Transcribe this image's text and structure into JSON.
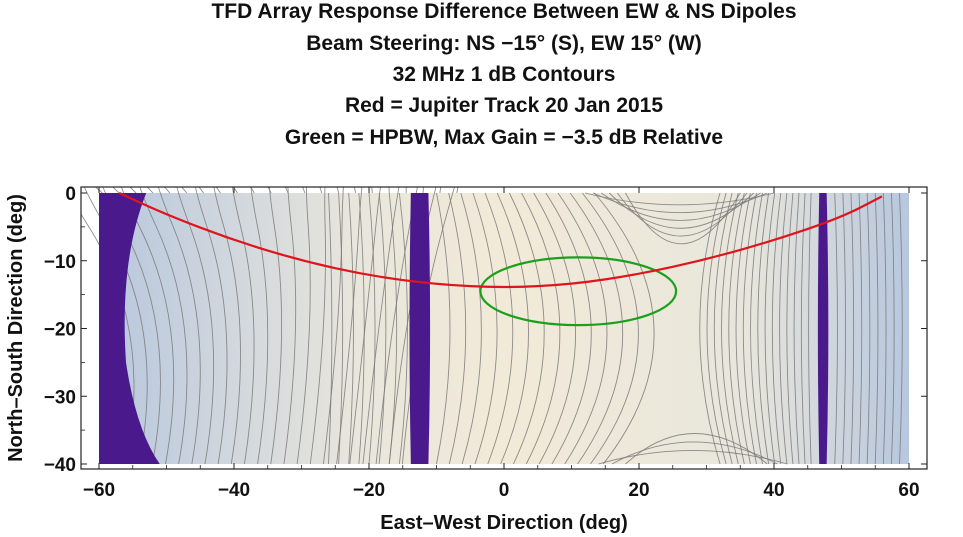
{
  "chart_data": {
    "type": "heatmap",
    "title_lines": [
      "TFD Array Response      Difference Between EW & NS Dipoles",
      "Beam Steering: NS −15° (S), EW 15° (W)",
      "32 MHz      1 dB Contours",
      "Red = Jupiter Track 20 Jan 2015",
      "Green = HPBW, Max Gain = −3.5 dB Relative"
    ],
    "xlabel": "East–West Direction (deg)",
    "ylabel": "North–South Direction (deg)",
    "xlim": [
      -60,
      60
    ],
    "ylim": [
      -40,
      0
    ],
    "x_ticks": [
      -60,
      -40,
      -20,
      0,
      20,
      40,
      60
    ],
    "x_tick_labels": [
      "−60",
      "−40",
      "−20",
      "0",
      "20",
      "40",
      "60"
    ],
    "y_ticks": [
      0,
      -10,
      -20,
      -30,
      -40
    ],
    "y_tick_labels": [
      "0",
      "−10",
      "−20",
      "−30",
      "−40"
    ],
    "contour_interval_db": 1,
    "null_bands": [
      {
        "x_min": -60,
        "x_max": -51.5,
        "note": "left null region"
      },
      {
        "x_min": -14,
        "x_max": -11,
        "note": "deep null"
      },
      {
        "x_min": 46.5,
        "x_max": 48,
        "note": "deep null"
      }
    ],
    "hpbw_ellipse": {
      "center_x": 11,
      "center_y": -14.5,
      "radius_x": 14.5,
      "radius_y": 5,
      "color": "#1aa01a"
    },
    "jupiter_track": {
      "color": "#e0141b",
      "x": [
        -57,
        -50,
        -40,
        -30,
        -20,
        -10,
        0,
        10,
        20,
        30,
        40,
        50,
        56
      ],
      "y": [
        0,
        -3.2,
        -7.0,
        -10.0,
        -12.2,
        -13.5,
        -14.0,
        -13.5,
        -12.0,
        -9.8,
        -7.0,
        -3.6,
        -0.5
      ]
    },
    "colors": {
      "null": "#4a1a8c",
      "low_response": "#b7c7de",
      "high_response": "#f2ead8",
      "contour": "#7a7a7a"
    }
  }
}
